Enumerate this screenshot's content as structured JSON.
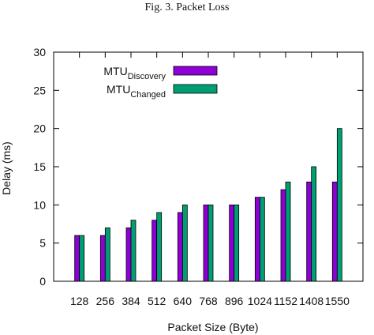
{
  "figure": {
    "caption": "Fig. 3.  Packet Loss"
  },
  "chart_data": {
    "type": "bar",
    "categories": [
      "128",
      "256",
      "384",
      "512",
      "640",
      "768",
      "896",
      "1024",
      "1152",
      "1408",
      "1550"
    ],
    "series": [
      {
        "name": "MTU",
        "name_sub": "Discovery",
        "color": "#8e00d6",
        "values": [
          6,
          6,
          7,
          8,
          9,
          10,
          10,
          11,
          12,
          13,
          13
        ]
      },
      {
        "name": "MTU",
        "name_sub": "Changed",
        "color": "#009e73",
        "values": [
          6,
          7,
          8,
          9,
          10,
          10,
          10,
          11,
          13,
          15,
          20
        ]
      }
    ],
    "title": "",
    "xlabel": "Packet Size (Byte)",
    "ylabel": "Delay  (ms)",
    "ylim": [
      0,
      30
    ],
    "yticks": [
      "0",
      "5",
      "10",
      "15",
      "20",
      "25",
      "30"
    ],
    "grid": false,
    "legend": "top-left"
  }
}
